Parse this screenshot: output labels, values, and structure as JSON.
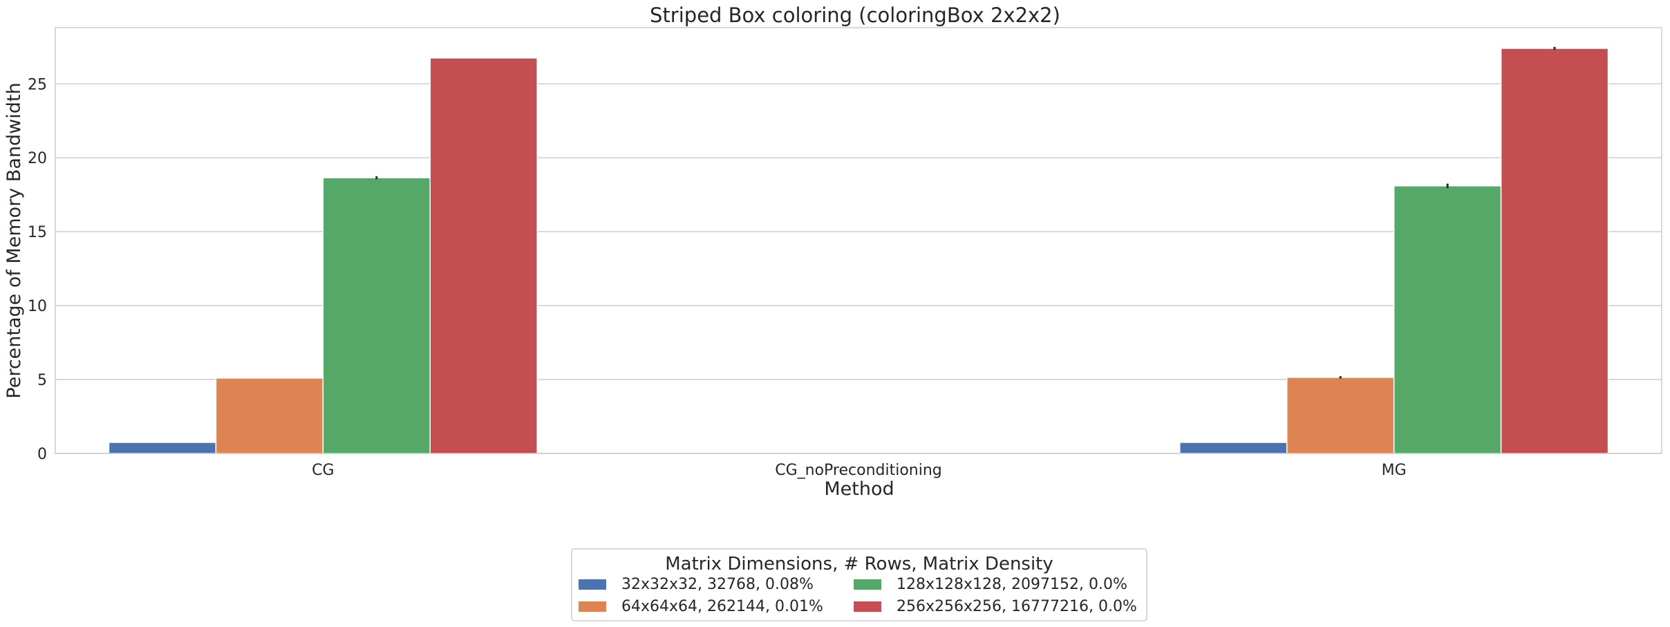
{
  "chart_data": {
    "type": "bar",
    "title": "Striped Box coloring (coloringBox 2x2x2)",
    "xlabel": "Method",
    "ylabel": "Percentage of Memory Bandwidth",
    "categories": [
      "CG",
      "CG_noPreconditioning",
      "MG"
    ],
    "ylim": [
      0,
      28.8
    ],
    "yticks": [
      0,
      5,
      10,
      15,
      20,
      25
    ],
    "grid": true,
    "legend": {
      "title": "Matrix Dimensions, # Rows, Matrix Density",
      "placement": "bottom-center, below plot"
    },
    "series": [
      {
        "name": "32x32x32, 32768, 0.08%",
        "color": "#4c72b0",
        "values": [
          0.75,
          null,
          0.75
        ],
        "errors": [
          0,
          null,
          0
        ]
      },
      {
        "name": "64x64x64, 262144, 0.01%",
        "color": "#dd8452",
        "values": [
          5.1,
          null,
          5.15
        ],
        "errors": [
          0,
          null,
          0.08
        ]
      },
      {
        "name": "128x128x128, 2097152, 0.0%",
        "color": "#55a868",
        "values": [
          18.65,
          null,
          18.1
        ],
        "errors": [
          0.1,
          null,
          0.15
        ]
      },
      {
        "name": "256x256x256, 16777216, 0.0%",
        "color": "#c44e52",
        "values": [
          26.75,
          null,
          27.4
        ],
        "errors": [
          0,
          null,
          0.1
        ]
      }
    ]
  }
}
